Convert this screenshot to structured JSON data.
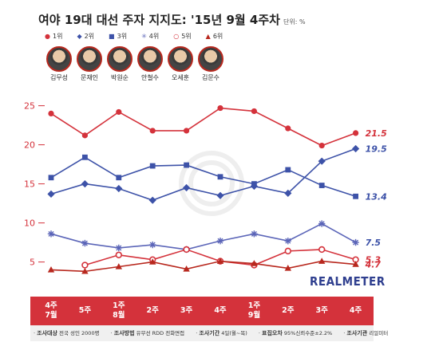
{
  "title": "여야 19대 대선 주자 지지도: '15년 9월 4주차",
  "unit": "단위: %",
  "brand": "REALMETER",
  "legend": [
    {
      "label": "1위",
      "color": "#d4323b",
      "marker": "circle"
    },
    {
      "label": "2위",
      "color": "#3d52a8",
      "marker": "diamond"
    },
    {
      "label": "3위",
      "color": "#3d52a8",
      "marker": "square"
    },
    {
      "label": "4위",
      "color": "#5b65b8",
      "marker": "star"
    },
    {
      "label": "5위",
      "color": "#d4323b",
      "marker": "open-circle"
    },
    {
      "label": "6위",
      "color": "#b8281e",
      "marker": "triangle"
    }
  ],
  "candidates": [
    "김무성",
    "문재인",
    "박원순",
    "안철수",
    "오세훈",
    "김문수"
  ],
  "footer": {
    "target_label": "조사대상",
    "target_value": "전국 성인 2000명",
    "method_label": "조사방법",
    "method_value": "유무선 RDD 전화면접",
    "period_label": "조사기간",
    "period_value": "4일(월~목)",
    "error_label": "표집오차",
    "error_value": "95%신뢰수준±2.2%",
    "agency_label": "조사기관",
    "agency_value": "리얼미터"
  },
  "chart_data": {
    "type": "line",
    "categories": [
      "4주 7월",
      "5주",
      "1주 8월",
      "2주",
      "3주",
      "4주",
      "1주 9월",
      "2주",
      "3주",
      "4주"
    ],
    "x_tick_lines": [
      [
        "4주",
        "7월"
      ],
      [
        "5주"
      ],
      [
        "1주",
        "8월"
      ],
      [
        "2주"
      ],
      [
        "3주"
      ],
      [
        "4주"
      ],
      [
        "1주",
        "9월"
      ],
      [
        "2주"
      ],
      [
        "3주"
      ],
      [
        "4주"
      ]
    ],
    "ylim": [
      2,
      27
    ],
    "yticks": [
      5,
      10,
      15,
      20,
      25
    ],
    "grid": false,
    "series": [
      {
        "values": [
          24.0,
          21.2,
          24.2,
          21.8,
          21.8,
          24.7,
          24.3,
          22.1,
          19.9,
          21.5
        ],
        "end_label": "21.5",
        "color": "#d4323b",
        "label_color": "#d4323b",
        "marker": "circle"
      },
      {
        "values": [
          13.7,
          15.0,
          14.4,
          12.9,
          14.5,
          13.5,
          14.7,
          13.8,
          17.9,
          19.5
        ],
        "end_label": "19.5",
        "color": "#3d52a8",
        "label_color": "#3d52a8",
        "marker": "diamond"
      },
      {
        "values": [
          15.8,
          18.4,
          15.8,
          17.3,
          17.4,
          15.9,
          15.0,
          16.8,
          14.8,
          13.4
        ],
        "end_label": "13.4",
        "color": "#3d52a8",
        "label_color": "#3d52a8",
        "marker": "square"
      },
      {
        "values": [
          8.6,
          7.4,
          6.8,
          7.2,
          6.6,
          7.7,
          8.6,
          7.7,
          9.9,
          7.5
        ],
        "end_label": "7.5",
        "color": "#5b65b8",
        "label_color": "#3d52a8",
        "marker": "star"
      },
      {
        "values": [
          null,
          4.6,
          5.9,
          5.3,
          6.6,
          5.1,
          4.6,
          6.4,
          6.6,
          5.3
        ],
        "end_label": "5.3",
        "color": "#d4323b",
        "label_color": "#d4323b",
        "marker": "open-circle"
      },
      {
        "values": [
          4.0,
          3.8,
          4.4,
          5.0,
          4.1,
          5.1,
          4.8,
          4.2,
          5.1,
          4.7
        ],
        "end_label": "4.7",
        "color": "#b8281e",
        "label_color": "#d4323b",
        "marker": "triangle"
      }
    ]
  }
}
